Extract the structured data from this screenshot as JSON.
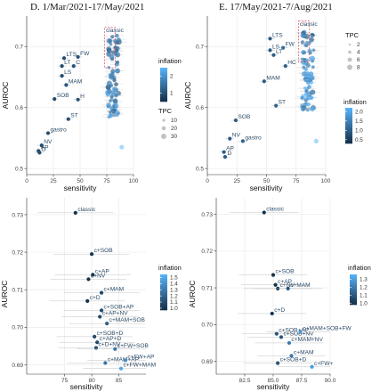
{
  "colors": {
    "low": "#132b43",
    "high": "#56b1f7",
    "classic_box": "#e0455b",
    "grid": "#ebebeb"
  },
  "chart_data": [
    {
      "type": "scatter",
      "title": "D. 1/Mar/2021-17/May/2021",
      "xlabel": "sensitivity",
      "ylabel": "AUROC",
      "xlim": [
        0,
        100
      ],
      "ylim": [
        0.49,
        0.75
      ],
      "xticks": [
        "0",
        "25",
        "50",
        "75",
        "100"
      ],
      "xtick_values": [
        0,
        25,
        50,
        75,
        100
      ],
      "yticks": [
        "0.5",
        "0.6",
        "0.7"
      ],
      "ytick_values": [
        0.5,
        0.6,
        0.7
      ],
      "grid": true,
      "legend_inflation": {
        "title": "inflation",
        "labels": [
          "1",
          "2"
        ],
        "range": [
          0.5,
          2.5
        ]
      },
      "legend_tpc": {
        "title": "TPC",
        "labels": [
          "10",
          "20",
          "30"
        ]
      },
      "points": [
        {
          "label": "FW",
          "x": 48,
          "y": 0.683,
          "infl": 1.1
        },
        {
          "label": "LTS",
          "x": 35,
          "y": 0.681,
          "infl": 1.0
        },
        {
          "label": "LT",
          "x": 33,
          "y": 0.668,
          "infl": 1.0
        },
        {
          "label": "C",
          "x": 44,
          "y": 0.668,
          "infl": 1.1
        },
        {
          "label": "LS",
          "x": 33,
          "y": 0.652,
          "infl": 1.0
        },
        {
          "label": "MAM",
          "x": 37,
          "y": 0.637,
          "infl": 1.1
        },
        {
          "label": "SOB",
          "x": 26,
          "y": 0.614,
          "infl": 1.0
        },
        {
          "label": "H",
          "x": 48,
          "y": 0.613,
          "infl": 1.1
        },
        {
          "label": "ST",
          "x": 39,
          "y": 0.581,
          "infl": 1.0
        },
        {
          "label": "gastro",
          "x": 20,
          "y": 0.558,
          "infl": 1.0
        },
        {
          "label": "NV",
          "x": 14,
          "y": 0.538,
          "infl": 1.0
        },
        {
          "label": "AP",
          "x": 11,
          "y": 0.529,
          "infl": 1.0
        },
        {
          "label": "D",
          "x": 12,
          "y": 0.526,
          "infl": 1.0
        }
      ],
      "classic_label": "classic",
      "cluster": {
        "x": [
          74,
          90
        ],
        "y": [
          0.545,
          0.72
        ]
      }
    },
    {
      "type": "scatter",
      "title": "E. 17/May/2021-7/Aug/2021",
      "xlabel": "sensitivity",
      "ylabel": "AUROC",
      "xlim": [
        0,
        100
      ],
      "ylim": [
        0.49,
        0.75
      ],
      "xticks": [
        "0",
        "25",
        "50",
        "75",
        "100"
      ],
      "xtick_values": [
        0,
        25,
        50,
        75,
        100
      ],
      "yticks": [
        "0.5",
        "0.6",
        "0.7"
      ],
      "ytick_values": [
        0.5,
        0.6,
        0.7
      ],
      "grid": true,
      "legend_tpc": {
        "title": "TPC",
        "labels": [
          "2",
          "4",
          "6",
          "8"
        ]
      },
      "legend_inflation": {
        "title": "inflation",
        "labels": [
          "2.0",
          "1.5",
          "1.0",
          "0.5"
        ],
        "range": [
          0.3,
          2.2
        ]
      },
      "points": [
        {
          "label": "LTS",
          "x": 53,
          "y": 0.713,
          "infl": 1.0
        },
        {
          "label": "FW",
          "x": 64,
          "y": 0.698,
          "infl": 1.2
        },
        {
          "label": "LS",
          "x": 53,
          "y": 0.694,
          "infl": 1.0
        },
        {
          "label": "LT",
          "x": 56,
          "y": 0.686,
          "infl": 1.0
        },
        {
          "label": "HC",
          "x": 66,
          "y": 0.668,
          "infl": 1.1
        },
        {
          "label": "MAM",
          "x": 48,
          "y": 0.643,
          "infl": 1.0
        },
        {
          "label": "ST",
          "x": 58,
          "y": 0.603,
          "infl": 1.1
        },
        {
          "label": "SOB",
          "x": 24,
          "y": 0.579,
          "infl": 1.0
        },
        {
          "label": "NV",
          "x": 19,
          "y": 0.549,
          "infl": 1.0
        },
        {
          "label": "gastro",
          "x": 30,
          "y": 0.545,
          "infl": 1.1
        },
        {
          "label": "AP",
          "x": 14,
          "y": 0.527,
          "infl": 1.0
        },
        {
          "label": "D",
          "x": 15,
          "y": 0.519,
          "infl": 1.0
        }
      ],
      "classic_label": "classic",
      "cluster": {
        "x": [
          78,
          93
        ],
        "y": [
          0.555,
          0.73
        ]
      }
    },
    {
      "type": "scatter",
      "title": "",
      "xlabel": "sensitivity",
      "ylabel": "AUROC",
      "xlim": [
        68,
        90
      ],
      "ylim": [
        0.6875,
        0.7345
      ],
      "xticks": [
        "75",
        "80",
        "85"
      ],
      "xtick_values": [
        75,
        80,
        85
      ],
      "yticks": [
        "0.69",
        "0.70",
        "0.71",
        "0.72",
        "0.73"
      ],
      "ytick_values": [
        0.69,
        0.7,
        0.71,
        0.72,
        0.73
      ],
      "grid": true,
      "legend_inflation": {
        "title": "inflation",
        "labels": [
          "1.5",
          "1.4",
          "1.3",
          "1.2",
          "1.1",
          "1.0"
        ],
        "range": [
          0.97,
          1.55
        ]
      },
      "points": [
        {
          "label": "classic",
          "x": 77.0,
          "y": 0.7305,
          "infl": 1.0,
          "xerr": 7
        },
        {
          "label": "c+SOB",
          "x": 80.0,
          "y": 0.7195,
          "infl": 1.0,
          "xerr": 7
        },
        {
          "label": "c+AP",
          "x": 80.2,
          "y": 0.714,
          "infl": 1.0,
          "xerr": 7
        },
        {
          "label": "c+NV",
          "x": 79.4,
          "y": 0.7128,
          "infl": 1.0,
          "xerr": 7
        },
        {
          "label": "c+D",
          "x": 79.2,
          "y": 0.707,
          "infl": 1.0,
          "xerr": 7
        },
        {
          "label": "c+MAM",
          "x": 81.8,
          "y": 0.7092,
          "infl": 1.1,
          "xerr": 7
        },
        {
          "label": "c+SOB+AP",
          "x": 81.8,
          "y": 0.7045,
          "infl": 1.1,
          "xerr": 7
        },
        {
          "label": "c+AP+NV",
          "x": 81.5,
          "y": 0.7028,
          "infl": 1.1,
          "xerr": 7
        },
        {
          "label": "c+MAM+SOB",
          "x": 82.8,
          "y": 0.701,
          "infl": 1.2,
          "xerr": 7
        },
        {
          "label": "c+SOB+D",
          "x": 80.5,
          "y": 0.6975,
          "infl": 1.1,
          "xerr": 7
        },
        {
          "label": "c+AP+D",
          "x": 81.0,
          "y": 0.696,
          "infl": 1.1,
          "xerr": 7
        },
        {
          "label": "c+D+NV",
          "x": 80.8,
          "y": 0.6945,
          "infl": 1.1,
          "xerr": 7
        },
        {
          "label": "c+FW+SOB",
          "x": 84.3,
          "y": 0.6942,
          "infl": 1.3,
          "xerr": 7
        },
        {
          "label": "c+MAM+AP",
          "x": 82.5,
          "y": 0.6905,
          "infl": 1.3,
          "xerr": 7
        },
        {
          "label": "c+FW+AP",
          "x": 86.2,
          "y": 0.6912,
          "infl": 1.4,
          "xerr": 7
        },
        {
          "label": "c+FW+MAM",
          "x": 85.4,
          "y": 0.689,
          "infl": 1.5,
          "xerr": 7
        }
      ]
    },
    {
      "type": "scatter",
      "title": "",
      "xlabel": "sensitivity",
      "ylabel": "AUROC",
      "xlim": [
        80,
        90
      ],
      "ylim": [
        0.6865,
        0.7345
      ],
      "xticks": [
        "82.5",
        "85.0",
        "87.5",
        "90.0"
      ],
      "xtick_values": [
        82.5,
        85.0,
        87.5,
        90.0
      ],
      "yticks": [
        "0.69",
        "0.70",
        "0.71",
        "0.72",
        "0.73"
      ],
      "ytick_values": [
        0.69,
        0.7,
        0.71,
        0.72,
        0.73
      ],
      "grid": true,
      "legend_inflation": {
        "title": "inflation",
        "labels": [
          "1.3",
          "1.2",
          "1.1",
          "1.0"
        ],
        "range": [
          0.98,
          1.36
        ]
      },
      "points": [
        {
          "label": "classic",
          "x": 84.2,
          "y": 0.7305,
          "infl": 1.0,
          "xerr": 3
        },
        {
          "label": "c+SOB",
          "x": 85.0,
          "y": 0.7135,
          "infl": 1.0,
          "xerr": 3
        },
        {
          "label": "c+AP",
          "x": 85.2,
          "y": 0.7108,
          "infl": 1.0,
          "xerr": 3
        },
        {
          "label": "c+NV",
          "x": 85.4,
          "y": 0.7098,
          "infl": 1.0,
          "xerr": 3
        },
        {
          "label": "c+MAM",
          "x": 86.3,
          "y": 0.7098,
          "infl": 1.1,
          "xerr": 3
        },
        {
          "label": "c+D",
          "x": 84.9,
          "y": 0.703,
          "infl": 1.0,
          "xerr": 3
        },
        {
          "label": "c+SOB+AP",
          "x": 85.3,
          "y": 0.6975,
          "infl": 1.1,
          "xerr": 3
        },
        {
          "label": "c+SOB+NV",
          "x": 85.7,
          "y": 0.6966,
          "infl": 1.1,
          "xerr": 3
        },
        {
          "label": "c+MAM+SOB+FW",
          "x": 87.4,
          "y": 0.698,
          "infl": 1.3,
          "xerr": 3
        },
        {
          "label": "c+MAM+NV",
          "x": 86.4,
          "y": 0.695,
          "infl": 1.2,
          "xerr": 3
        },
        {
          "label": "c+SOB+D",
          "x": 85.4,
          "y": 0.6895,
          "infl": 1.1,
          "xerr": 3
        },
        {
          "label": "c+MAM",
          "x": 86.6,
          "y": 0.6915,
          "infl": 1.2,
          "xerr": 3
        },
        {
          "label": "c+FW+",
          "x": 88.4,
          "y": 0.6885,
          "infl": 1.3,
          "xerr": 3
        }
      ]
    }
  ]
}
